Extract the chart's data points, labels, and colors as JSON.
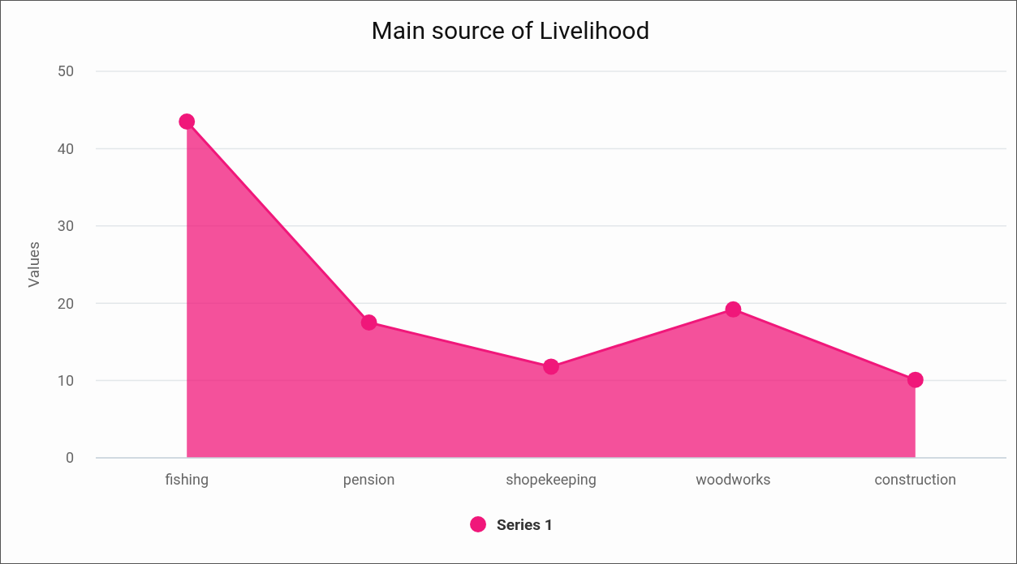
{
  "chart_data": {
    "type": "area",
    "title": "Main source of Livelihood",
    "ylabel": "Values",
    "categories": [
      "fishing",
      "pension",
      "shopekeeping",
      "woodworks",
      "construction"
    ],
    "series": [
      {
        "name": "Series 1",
        "color": "#f0177a",
        "values": [
          43.5,
          17.5,
          11.8,
          19.2,
          10.1
        ]
      }
    ],
    "ylim": [
      0,
      50
    ],
    "yticks": [
      0,
      10,
      20,
      30,
      40,
      50
    ],
    "grid": "y",
    "legend": "bottom",
    "marker": "circle"
  }
}
